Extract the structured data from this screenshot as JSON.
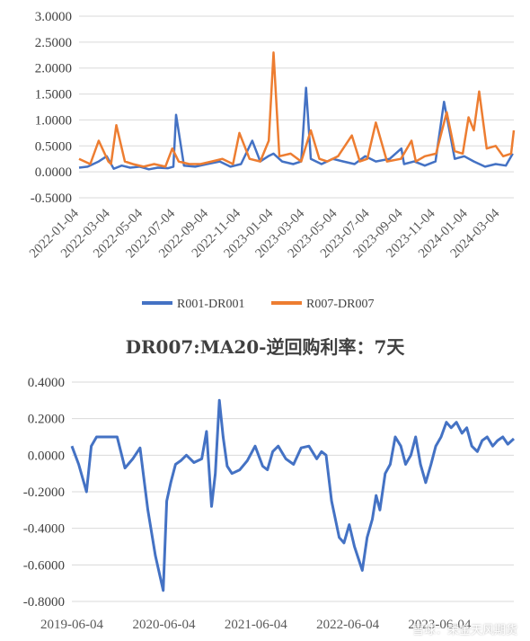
{
  "watermark": "雪球：荣金天风期货",
  "chart_data": [
    {
      "type": "line",
      "title": "",
      "xlabel": "",
      "ylabel": "",
      "ylim": [
        -0.5,
        3.0
      ],
      "yticks": [
        "3.0000",
        "2.5000",
        "2.0000",
        "1.5000",
        "1.0000",
        "0.5000",
        "0.0000",
        "-0.5000"
      ],
      "ytick_values": [
        3.0,
        2.5,
        2.0,
        1.5,
        1.0,
        0.5,
        0.0,
        -0.5
      ],
      "xticks": [
        "2022-01-04",
        "2022-03-04",
        "2022-05-04",
        "2022-07-04",
        "2022-09-04",
        "2022-11-04",
        "2023-01-04",
        "2023-03-04",
        "2023-05-04",
        "2023-07-04",
        "2023-09-04",
        "2023-11-04",
        "2024-01-04",
        "2024-03-04"
      ],
      "grid": true,
      "legend": "bottom",
      "series": [
        {
          "name": "R001-DR001",
          "color": "#4472c4",
          "x": [
            "2022-01-04",
            "2022-01-20",
            "2022-02-10",
            "2022-02-25",
            "2022-03-10",
            "2022-03-25",
            "2022-04-10",
            "2022-04-28",
            "2022-05-15",
            "2022-06-01",
            "2022-06-20",
            "2022-06-30",
            "2022-07-05",
            "2022-07-20",
            "2022-08-10",
            "2022-09-01",
            "2022-09-25",
            "2022-10-15",
            "2022-11-04",
            "2022-11-25",
            "2022-12-10",
            "2022-12-25",
            "2023-01-04",
            "2023-01-20",
            "2023-02-10",
            "2023-02-25",
            "2023-03-06",
            "2023-03-15",
            "2023-04-04",
            "2023-04-25",
            "2023-05-15",
            "2023-06-05",
            "2023-06-25",
            "2023-07-15",
            "2023-08-10",
            "2023-09-01",
            "2023-09-06",
            "2023-09-25",
            "2023-10-15",
            "2023-11-04",
            "2023-11-20",
            "2023-12-10",
            "2023-12-28",
            "2024-01-15",
            "2024-02-05",
            "2024-02-25",
            "2024-03-15",
            "2024-03-28"
          ],
          "y": [
            0.08,
            0.1,
            0.2,
            0.3,
            0.06,
            0.12,
            0.08,
            0.1,
            0.05,
            0.08,
            0.07,
            0.1,
            1.1,
            0.12,
            0.1,
            0.15,
            0.2,
            0.1,
            0.15,
            0.6,
            0.2,
            0.3,
            0.35,
            0.2,
            0.15,
            0.2,
            1.62,
            0.25,
            0.15,
            0.25,
            0.2,
            0.15,
            0.3,
            0.2,
            0.25,
            0.45,
            0.15,
            0.2,
            0.12,
            0.2,
            1.35,
            0.25,
            0.3,
            0.2,
            0.1,
            0.15,
            0.12,
            0.35
          ]
        },
        {
          "name": "R007-DR007",
          "color": "#ed7d31",
          "x": [
            "2022-01-04",
            "2022-01-25",
            "2022-02-10",
            "2022-02-28",
            "2022-03-05",
            "2022-03-15",
            "2022-03-31",
            "2022-04-15",
            "2022-05-05",
            "2022-05-25",
            "2022-06-15",
            "2022-06-28",
            "2022-07-10",
            "2022-07-30",
            "2022-08-20",
            "2022-09-10",
            "2022-09-30",
            "2022-10-20",
            "2022-11-01",
            "2022-11-20",
            "2022-12-10",
            "2022-12-26",
            "2023-01-04",
            "2023-01-15",
            "2023-02-05",
            "2023-02-25",
            "2023-03-15",
            "2023-03-31",
            "2023-04-15",
            "2023-05-05",
            "2023-05-31",
            "2023-06-15",
            "2023-06-29",
            "2023-07-15",
            "2023-08-05",
            "2023-08-31",
            "2023-09-20",
            "2023-09-28",
            "2023-10-15",
            "2023-11-05",
            "2023-11-25",
            "2023-12-10",
            "2023-12-25",
            "2024-01-05",
            "2024-01-15",
            "2024-01-25",
            "2024-02-08",
            "2024-02-25",
            "2024-03-10",
            "2024-03-25",
            "2024-03-30"
          ],
          "y": [
            0.25,
            0.15,
            0.6,
            0.2,
            0.15,
            0.9,
            0.2,
            0.15,
            0.1,
            0.15,
            0.1,
            0.45,
            0.2,
            0.15,
            0.15,
            0.2,
            0.25,
            0.15,
            0.75,
            0.25,
            0.2,
            0.6,
            2.3,
            0.3,
            0.35,
            0.2,
            0.8,
            0.25,
            0.2,
            0.3,
            0.7,
            0.2,
            0.25,
            0.95,
            0.2,
            0.25,
            0.6,
            0.2,
            0.3,
            0.35,
            1.15,
            0.4,
            0.35,
            1.05,
            0.8,
            1.55,
            0.45,
            0.5,
            0.3,
            0.35,
            0.8
          ]
        }
      ]
    },
    {
      "type": "line",
      "title": "DR007:MA20-逆回购利率：7天",
      "xlabel": "",
      "ylabel": "",
      "ylim": [
        -0.8,
        0.4
      ],
      "yticks": [
        "0.4000",
        "0.2000",
        "0.0000",
        "-0.2000",
        "-0.4000",
        "-0.6000",
        "-0.8000"
      ],
      "ytick_values": [
        0.4,
        0.2,
        0.0,
        -0.2,
        -0.4,
        -0.6,
        -0.8
      ],
      "xticks": [
        "2019-06-04",
        "2020-06-04",
        "2021-06-04",
        "2022-06-04",
        "2023-06-04"
      ],
      "grid": true,
      "legend": "none",
      "series": [
        {
          "name": "",
          "color": "#4472c4",
          "x": [
            "2019-06-04",
            "2019-07-01",
            "2019-08-01",
            "2019-08-20",
            "2019-09-10",
            "2019-10-01",
            "2019-11-01",
            "2019-12-01",
            "2020-01-01",
            "2020-02-01",
            "2020-03-01",
            "2020-04-01",
            "2020-05-01",
            "2020-06-01",
            "2020-06-15",
            "2020-07-01",
            "2020-07-20",
            "2020-08-10",
            "2020-09-01",
            "2020-10-01",
            "2020-11-01",
            "2020-11-20",
            "2020-12-10",
            "2020-12-25",
            "2021-01-10",
            "2021-01-25",
            "2021-02-10",
            "2021-03-01",
            "2021-04-01",
            "2021-05-01",
            "2021-06-01",
            "2021-07-01",
            "2021-07-20",
            "2021-08-10",
            "2021-09-01",
            "2021-10-01",
            "2021-11-01",
            "2021-12-01",
            "2022-01-01",
            "2022-02-01",
            "2022-02-20",
            "2022-03-10",
            "2022-04-01",
            "2022-05-01",
            "2022-05-20",
            "2022-06-10",
            "2022-07-01",
            "2022-08-01",
            "2022-08-20",
            "2022-09-10",
            "2022-09-25",
            "2022-10-10",
            "2022-10-31",
            "2022-11-20",
            "2022-12-10",
            "2023-01-01",
            "2023-01-20",
            "2023-02-10",
            "2023-03-01",
            "2023-03-20",
            "2023-04-10",
            "2023-05-01",
            "2023-05-20",
            "2023-06-10",
            "2023-07-01",
            "2023-07-20",
            "2023-08-10",
            "2023-09-01",
            "2023-09-20",
            "2023-10-10",
            "2023-11-01",
            "2023-11-20",
            "2023-12-10",
            "2024-01-01",
            "2024-01-20",
            "2024-02-10",
            "2024-03-01",
            "2024-03-25"
          ],
          "y": [
            0.05,
            -0.05,
            -0.2,
            0.05,
            0.1,
            0.1,
            0.1,
            0.1,
            -0.07,
            -0.02,
            0.04,
            -0.3,
            -0.55,
            -0.74,
            -0.25,
            -0.15,
            -0.05,
            -0.03,
            0.0,
            -0.04,
            -0.02,
            0.13,
            -0.28,
            -0.1,
            0.3,
            0.1,
            -0.06,
            -0.1,
            -0.08,
            -0.03,
            0.05,
            -0.06,
            -0.08,
            0.02,
            0.05,
            -0.02,
            -0.05,
            0.04,
            0.05,
            -0.02,
            0.02,
            0.0,
            -0.25,
            -0.45,
            -0.48,
            -0.38,
            -0.5,
            -0.63,
            -0.45,
            -0.35,
            -0.22,
            -0.3,
            -0.1,
            -0.05,
            0.1,
            0.05,
            -0.05,
            0.0,
            0.1,
            -0.05,
            -0.15,
            -0.05,
            0.05,
            0.1,
            0.18,
            0.15,
            0.18,
            0.12,
            0.15,
            0.05,
            0.02,
            0.08,
            0.1,
            0.05,
            0.08,
            0.1,
            0.06,
            0.09
          ]
        }
      ]
    }
  ]
}
